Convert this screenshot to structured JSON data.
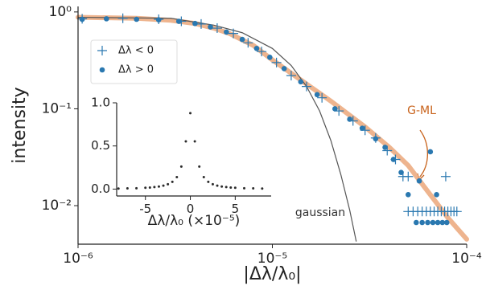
{
  "chart_data": [
    {
      "type": "scatter",
      "xlabel": "|Δλ/λ₀|",
      "ylabel": "intensity",
      "xscale": "log",
      "yscale": "log",
      "xlim": [
        1e-06,
        0.0001
      ],
      "ylim": [
        0.004,
        1.14
      ],
      "xticks": [
        {
          "value": 1e-06,
          "label": "10⁻⁶"
        },
        {
          "value": 1e-05,
          "label": "10⁻⁵"
        },
        {
          "value": 0.0001,
          "label": "10⁻⁴"
        }
      ],
      "yticks": [
        {
          "value": 0.01,
          "label": "10⁻²"
        },
        {
          "value": 0.1,
          "label": "10⁻¹"
        },
        {
          "value": 1,
          "label": "10⁰"
        }
      ],
      "legend_loc": "upper left",
      "series": [
        {
          "name": "Δλ < 0",
          "color": "#2a78b0",
          "marker": "plus",
          "x": [
            1.05e-06,
            1.7e-06,
            2.6e-06,
            3.4e-06,
            4.3e-06,
            5.2e-06,
            6.3e-06,
            7.5e-06,
            8.8e-06,
            1.05e-05,
            1.25e-05,
            1.5e-05,
            1.8e-05,
            2.2e-05,
            2.6e-05,
            3e-05,
            3.4e-05,
            3.9e-05,
            4.3e-05,
            4.7e-05,
            5e-05,
            7.8e-05,
            5e-05,
            5.3e-05,
            5.6e-05,
            5.9e-05,
            6.2e-05,
            6.5e-05,
            6.8e-05,
            7.1e-05,
            7.4e-05,
            7.7e-05,
            8e-05,
            8.3e-05,
            8.6e-05,
            8.9e-05
          ],
          "values": [
            0.85,
            0.86,
            0.84,
            0.8,
            0.75,
            0.68,
            0.6,
            0.48,
            0.39,
            0.3,
            0.22,
            0.17,
            0.13,
            0.095,
            0.075,
            0.06,
            0.05,
            0.037,
            0.03,
            0.02,
            0.02,
            0.02,
            0.0087,
            0.0087,
            0.0087,
            0.0087,
            0.0087,
            0.0087,
            0.0087,
            0.0087,
            0.0087,
            0.0087,
            0.0087,
            0.0087,
            0.0087,
            0.0087
          ]
        },
        {
          "name": "Δλ > 0",
          "color": "#2a78b0",
          "marker": "dot",
          "x": [
            1.05e-06,
            1.4e-06,
            2e-06,
            2.6e-06,
            3.3e-06,
            4e-06,
            4.8e-06,
            5.8e-06,
            7e-06,
            8.3e-06,
            9.7e-06,
            1.15e-05,
            1.4e-05,
            1.7e-05,
            2.1e-05,
            2.5e-05,
            2.9e-05,
            3.4e-05,
            3.8e-05,
            4.2e-05,
            4.6e-05,
            5.7e-05,
            5e-05,
            6.5e-05,
            7e-05,
            5.5e-05,
            5.9e-05,
            6.3e-05,
            6.7e-05,
            7.1e-05,
            7.5e-05,
            7.9e-05
          ],
          "values": [
            0.84,
            0.85,
            0.84,
            0.83,
            0.8,
            0.76,
            0.7,
            0.62,
            0.52,
            0.42,
            0.34,
            0.26,
            0.19,
            0.14,
            0.1,
            0.078,
            0.063,
            0.049,
            0.04,
            0.03,
            0.022,
            0.018,
            0.013,
            0.036,
            0.013,
            0.0067,
            0.0067,
            0.0067,
            0.0067,
            0.0067,
            0.0067,
            0.0067
          ]
        },
        {
          "name": "G-ML",
          "color": "#eba77a",
          "label_color": "#c8631c",
          "line": "thick",
          "x": [
            1e-06,
            2e-06,
            3e-06,
            4e-06,
            5e-06,
            6e-06,
            8e-06,
            1e-05,
            1.5e-05,
            2e-05,
            3e-05,
            4e-05,
            5e-05,
            6e-05,
            8e-05,
            0.0001
          ],
          "values": [
            0.88,
            0.86,
            0.82,
            0.76,
            0.68,
            0.6,
            0.45,
            0.32,
            0.18,
            0.12,
            0.065,
            0.04,
            0.026,
            0.016,
            0.0075,
            0.0045
          ]
        },
        {
          "name": "gaussian",
          "color": "#555555",
          "label_color": "#333333",
          "line": "thin",
          "x": [
            1e-06,
            3e-06,
            5e-06,
            7e-06,
            1e-05,
            1.25e-05,
            1.5e-05,
            1.75e-05,
            2e-05,
            2.25e-05,
            2.5e-05,
            2.7e-05
          ],
          "values": [
            0.88,
            0.86,
            0.73,
            0.61,
            0.42,
            0.28,
            0.17,
            0.095,
            0.047,
            0.021,
            0.009,
            0.0043
          ]
        }
      ]
    },
    {
      "type": "scatter",
      "xlabel": "Δλ/λ₀ (×10⁻⁵)",
      "xlim": [
        -8.2,
        9.0
      ],
      "ylim": [
        -0.08,
        1.0
      ],
      "xticks": [
        -5,
        0,
        5
      ],
      "yticks": [
        {
          "value": 0,
          "label": "0.0"
        },
        {
          "value": 0.5,
          "label": "0.5"
        },
        {
          "value": 1,
          "label": "1.0"
        }
      ],
      "series": [
        {
          "color": "#2b2b2b",
          "marker": "small-dot",
          "x": [
            -8,
            -7,
            -6,
            -5,
            -4.5,
            -4,
            -3.5,
            -3,
            -2.5,
            -2,
            -1.5,
            -1,
            -0.5,
            0,
            0.5,
            1,
            1.5,
            2,
            2.5,
            3,
            3.5,
            4,
            4.5,
            5,
            6,
            7,
            8
          ],
          "values": [
            0.006,
            0.008,
            0.01,
            0.015,
            0.018,
            0.023,
            0.029,
            0.04,
            0.056,
            0.084,
            0.139,
            0.261,
            0.553,
            0.88,
            0.553,
            0.261,
            0.139,
            0.084,
            0.056,
            0.04,
            0.029,
            0.023,
            0.018,
            0.015,
            0.01,
            0.008,
            0.006
          ]
        }
      ]
    }
  ]
}
